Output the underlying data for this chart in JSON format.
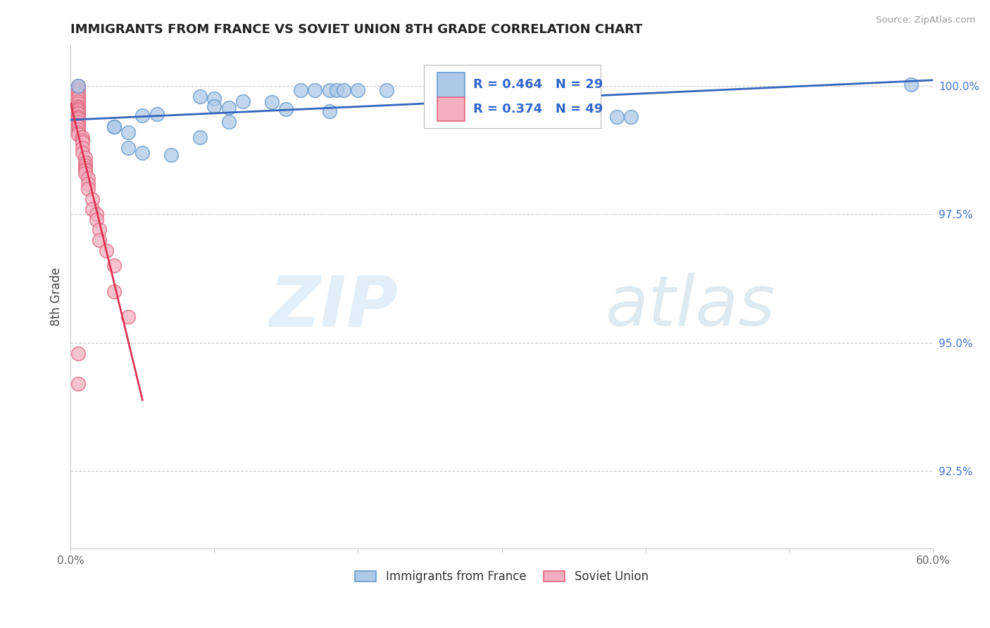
{
  "title": "IMMIGRANTS FROM FRANCE VS SOVIET UNION 8TH GRADE CORRELATION CHART",
  "source": "Source: ZipAtlas.com",
  "ylabel": "8th Grade",
  "xlim": [
    0.0,
    0.6
  ],
  "ylim": [
    0.91,
    1.008
  ],
  "xticks": [
    0.0,
    0.1,
    0.2,
    0.3,
    0.4,
    0.5,
    0.6
  ],
  "xticklabels": [
    "0.0%",
    "",
    "",
    "",
    "",
    "",
    "60.0%"
  ],
  "yticks": [
    0.925,
    0.95,
    0.975,
    1.0
  ],
  "yticklabels": [
    "92.5%",
    "95.0%",
    "97.5%",
    "100.0%"
  ],
  "legend_entries": [
    "Immigrants from France",
    "Soviet Union"
  ],
  "france_color": "#adc9e8",
  "soviet_color": "#f5afc0",
  "france_edge": "#6699cc",
  "soviet_edge": "#e06880",
  "trendline_france_color": "#3366bb",
  "trendline_soviet_color": "#dd3355",
  "R_france": 0.464,
  "N_france": 29,
  "R_soviet": 0.374,
  "N_soviet": 49,
  "france_x": [
    0.005,
    0.16,
    0.17,
    0.18,
    0.185,
    0.19,
    0.2,
    0.22,
    0.09,
    0.1,
    0.12,
    0.14,
    0.1,
    0.11,
    0.15,
    0.18,
    0.06,
    0.05,
    0.38,
    0.39,
    0.11,
    0.585,
    0.03,
    0.03,
    0.04,
    0.09,
    0.04,
    0.05,
    0.07
  ],
  "france_y": [
    1.0,
    0.9992,
    0.9992,
    0.9992,
    0.9992,
    0.9992,
    0.9992,
    0.9992,
    0.998,
    0.9975,
    0.997,
    0.9968,
    0.996,
    0.9957,
    0.9955,
    0.995,
    0.9945,
    0.9942,
    0.994,
    0.994,
    0.993,
    1.0002,
    0.992,
    0.992,
    0.991,
    0.99,
    0.988,
    0.987,
    0.9865
  ],
  "soviet_x": [
    0.005,
    0.005,
    0.005,
    0.005,
    0.005,
    0.005,
    0.005,
    0.005,
    0.005,
    0.005,
    0.005,
    0.005,
    0.005,
    0.005,
    0.005,
    0.005,
    0.005,
    0.005,
    0.005,
    0.005,
    0.005,
    0.005,
    0.005,
    0.008,
    0.008,
    0.008,
    0.008,
    0.008,
    0.01,
    0.01,
    0.01,
    0.01,
    0.01,
    0.01,
    0.012,
    0.012,
    0.012,
    0.015,
    0.015,
    0.018,
    0.018,
    0.02,
    0.02,
    0.025,
    0.03,
    0.03,
    0.04,
    0.005,
    0.005
  ],
  "soviet_y": [
    1.0,
    0.9995,
    0.999,
    0.9985,
    0.998,
    0.9975,
    0.997,
    0.9965,
    0.996,
    0.9957,
    0.9955,
    0.9952,
    0.9948,
    0.9945,
    0.994,
    0.9938,
    0.9935,
    0.993,
    0.9925,
    0.992,
    0.9915,
    0.991,
    0.9905,
    0.99,
    0.9895,
    0.989,
    0.988,
    0.987,
    0.986,
    0.985,
    0.9845,
    0.984,
    0.9835,
    0.983,
    0.982,
    0.981,
    0.98,
    0.978,
    0.976,
    0.975,
    0.974,
    0.972,
    0.97,
    0.968,
    0.965,
    0.96,
    0.955,
    0.948,
    0.942
  ],
  "watermark_zip": "ZIP",
  "watermark_atlas": "atlas",
  "background_color": "#ffffff",
  "grid_color": "#cccccc"
}
